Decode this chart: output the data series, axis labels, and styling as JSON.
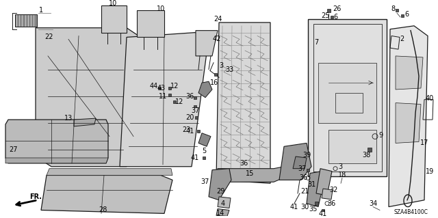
{
  "background_color": "#ffffff",
  "diagram_code": "SZA4B4100C",
  "line_color": "#1a1a1a",
  "label_color": "#000000",
  "label_fontsize": 6.5,
  "figsize": [
    6.4,
    3.19
  ],
  "dpi": 100,
  "parts": {
    "seat_back_left": {
      "color": "#d0d0d0"
    },
    "seat_cushion": {
      "color": "#c8c8c8"
    },
    "frame": {
      "color": "#e0e0e0"
    },
    "panel": {
      "color": "#e8e8e8"
    },
    "mechanism": {
      "color": "#b0b0b0"
    }
  }
}
